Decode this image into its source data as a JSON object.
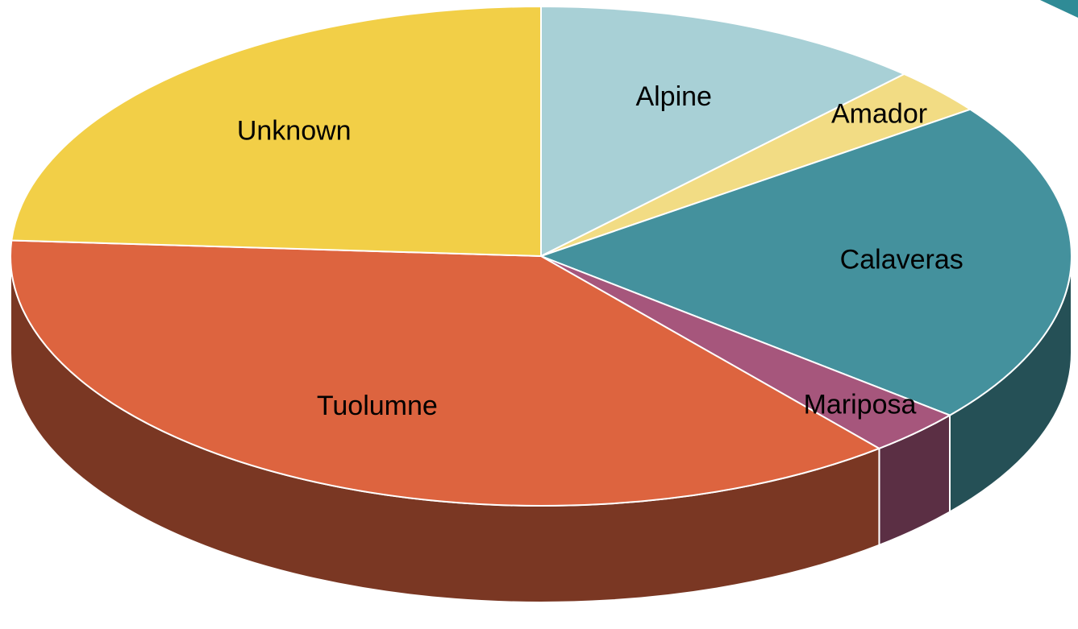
{
  "chart_data": {
    "type": "pie3d",
    "categories": [
      "Alpine",
      "Amador",
      "Calaveras",
      "Mariposa",
      "Tuolumne",
      "Unknown"
    ],
    "values": [
      12,
      3,
      21,
      3,
      37,
      24
    ],
    "colors": [
      "#a8d0d6",
      "#f2dc84",
      "#44919d",
      "#a6567c",
      "#dd643f",
      "#f2cf47"
    ]
  }
}
